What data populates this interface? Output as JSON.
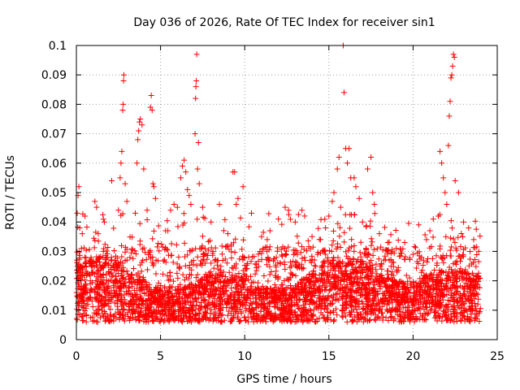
{
  "chart_data": {
    "type": "scatter",
    "title": "Day 036 of 2026, Rate Of TEC Index for receiver sin1",
    "xlabel": "GPS time / hours",
    "ylabel": "ROTI / TECUs",
    "xlim": [
      0,
      25
    ],
    "ylim": [
      0,
      0.1
    ],
    "x_ticks": [
      0,
      5,
      10,
      15,
      20,
      25
    ],
    "x_tick_labels": [
      "0",
      "5",
      "10",
      "15",
      "20",
      "25"
    ],
    "y_ticks": [
      0,
      0.01,
      0.02,
      0.03,
      0.04,
      0.05,
      0.06,
      0.07,
      0.08,
      0.09,
      0.1
    ],
    "y_tick_labels": [
      "0",
      "0.01",
      "0.02",
      "0.03",
      "0.04",
      "0.05",
      "0.06",
      "0.07",
      "0.08",
      "0.09",
      "0.1"
    ],
    "grid": true,
    "marker": "plus",
    "marker_color": "#ff0000",
    "series": [
      {
        "name": "sin1",
        "points": [
          [
            0.05,
            0.043
          ],
          [
            0.1,
            0.049
          ],
          [
            0.15,
            0.052
          ],
          [
            0.2,
            0.038
          ],
          [
            0.3,
            0.031
          ],
          [
            0.35,
            0.036
          ],
          [
            0.5,
            0.028
          ],
          [
            0.8,
            0.027
          ],
          [
            1.1,
            0.047
          ],
          [
            1.2,
            0.045
          ],
          [
            1.3,
            0.036
          ],
          [
            1.6,
            0.03
          ],
          [
            2.1,
            0.054
          ],
          [
            2.5,
            0.044
          ],
          [
            2.6,
            0.055
          ],
          [
            2.65,
            0.06
          ],
          [
            2.7,
            0.064
          ],
          [
            2.75,
            0.078
          ],
          [
            2.78,
            0.08
          ],
          [
            2.8,
            0.088
          ],
          [
            2.82,
            0.09
          ],
          [
            2.9,
            0.053
          ],
          [
            3.0,
            0.047
          ],
          [
            3.5,
            0.043
          ],
          [
            3.6,
            0.06
          ],
          [
            3.65,
            0.068
          ],
          [
            3.7,
            0.071
          ],
          [
            3.75,
            0.074
          ],
          [
            3.8,
            0.075
          ],
          [
            3.9,
            0.073
          ],
          [
            4.0,
            0.058
          ],
          [
            4.2,
            0.044
          ],
          [
            4.4,
            0.079
          ],
          [
            4.45,
            0.083
          ],
          [
            4.5,
            0.078
          ],
          [
            4.55,
            0.053
          ],
          [
            4.6,
            0.052
          ],
          [
            4.7,
            0.048
          ],
          [
            5.3,
            0.037
          ],
          [
            5.6,
            0.044
          ],
          [
            5.8,
            0.046
          ],
          [
            6.0,
            0.045
          ],
          [
            6.2,
            0.055
          ],
          [
            6.3,
            0.059
          ],
          [
            6.4,
            0.061
          ],
          [
            6.5,
            0.057
          ],
          [
            6.6,
            0.051
          ],
          [
            6.7,
            0.049
          ],
          [
            6.8,
            0.046
          ],
          [
            7.05,
            0.07
          ],
          [
            7.08,
            0.082
          ],
          [
            7.1,
            0.086
          ],
          [
            7.12,
            0.088
          ],
          [
            7.15,
            0.097
          ],
          [
            7.2,
            0.058
          ],
          [
            7.25,
            0.067
          ],
          [
            7.3,
            0.053
          ],
          [
            7.5,
            0.045
          ],
          [
            8.0,
            0.04
          ],
          [
            8.5,
            0.046
          ],
          [
            9.0,
            0.036
          ],
          [
            9.3,
            0.057
          ],
          [
            9.4,
            0.057
          ],
          [
            9.5,
            0.046
          ],
          [
            9.6,
            0.048
          ],
          [
            9.9,
            0.052
          ],
          [
            10.4,
            0.043
          ],
          [
            11.0,
            0.035
          ],
          [
            11.5,
            0.037
          ],
          [
            12.0,
            0.041
          ],
          [
            12.4,
            0.045
          ],
          [
            12.6,
            0.044
          ],
          [
            13.0,
            0.04
          ],
          [
            13.4,
            0.044
          ],
          [
            14.0,
            0.035
          ],
          [
            14.5,
            0.034
          ],
          [
            14.8,
            0.038
          ],
          [
            15.0,
            0.042
          ],
          [
            15.2,
            0.047
          ],
          [
            15.3,
            0.05
          ],
          [
            15.5,
            0.058
          ],
          [
            15.6,
            0.062
          ],
          [
            15.7,
            0.045
          ],
          [
            15.85,
            0.1
          ],
          [
            15.9,
            0.084
          ],
          [
            16.0,
            0.065
          ],
          [
            16.1,
            0.06
          ],
          [
            16.2,
            0.065
          ],
          [
            16.3,
            0.055
          ],
          [
            16.5,
            0.055
          ],
          [
            16.6,
            0.052
          ],
          [
            16.8,
            0.048
          ],
          [
            17.0,
            0.04
          ],
          [
            17.3,
            0.058
          ],
          [
            17.5,
            0.062
          ],
          [
            17.6,
            0.05
          ],
          [
            17.7,
            0.046
          ],
          [
            18.0,
            0.036
          ],
          [
            18.5,
            0.033
          ],
          [
            19.0,
            0.031
          ],
          [
            19.5,
            0.033
          ],
          [
            20.0,
            0.029
          ],
          [
            20.5,
            0.028
          ],
          [
            20.8,
            0.034
          ],
          [
            21.0,
            0.037
          ],
          [
            21.2,
            0.041
          ],
          [
            21.5,
            0.042
          ],
          [
            21.6,
            0.064
          ],
          [
            21.7,
            0.06
          ],
          [
            21.8,
            0.055
          ],
          [
            21.9,
            0.05
          ],
          [
            22.0,
            0.046
          ],
          [
            22.1,
            0.066
          ],
          [
            22.15,
            0.076
          ],
          [
            22.2,
            0.081
          ],
          [
            22.25,
            0.089
          ],
          [
            22.3,
            0.09
          ],
          [
            22.35,
            0.093
          ],
          [
            22.4,
            0.097
          ],
          [
            22.45,
            0.096
          ],
          [
            22.5,
            0.054
          ],
          [
            22.7,
            0.05
          ],
          [
            23.0,
            0.04
          ],
          [
            23.3,
            0.038
          ],
          [
            23.6,
            0.034
          ],
          [
            23.9,
            0.03
          ]
        ]
      }
    ]
  }
}
